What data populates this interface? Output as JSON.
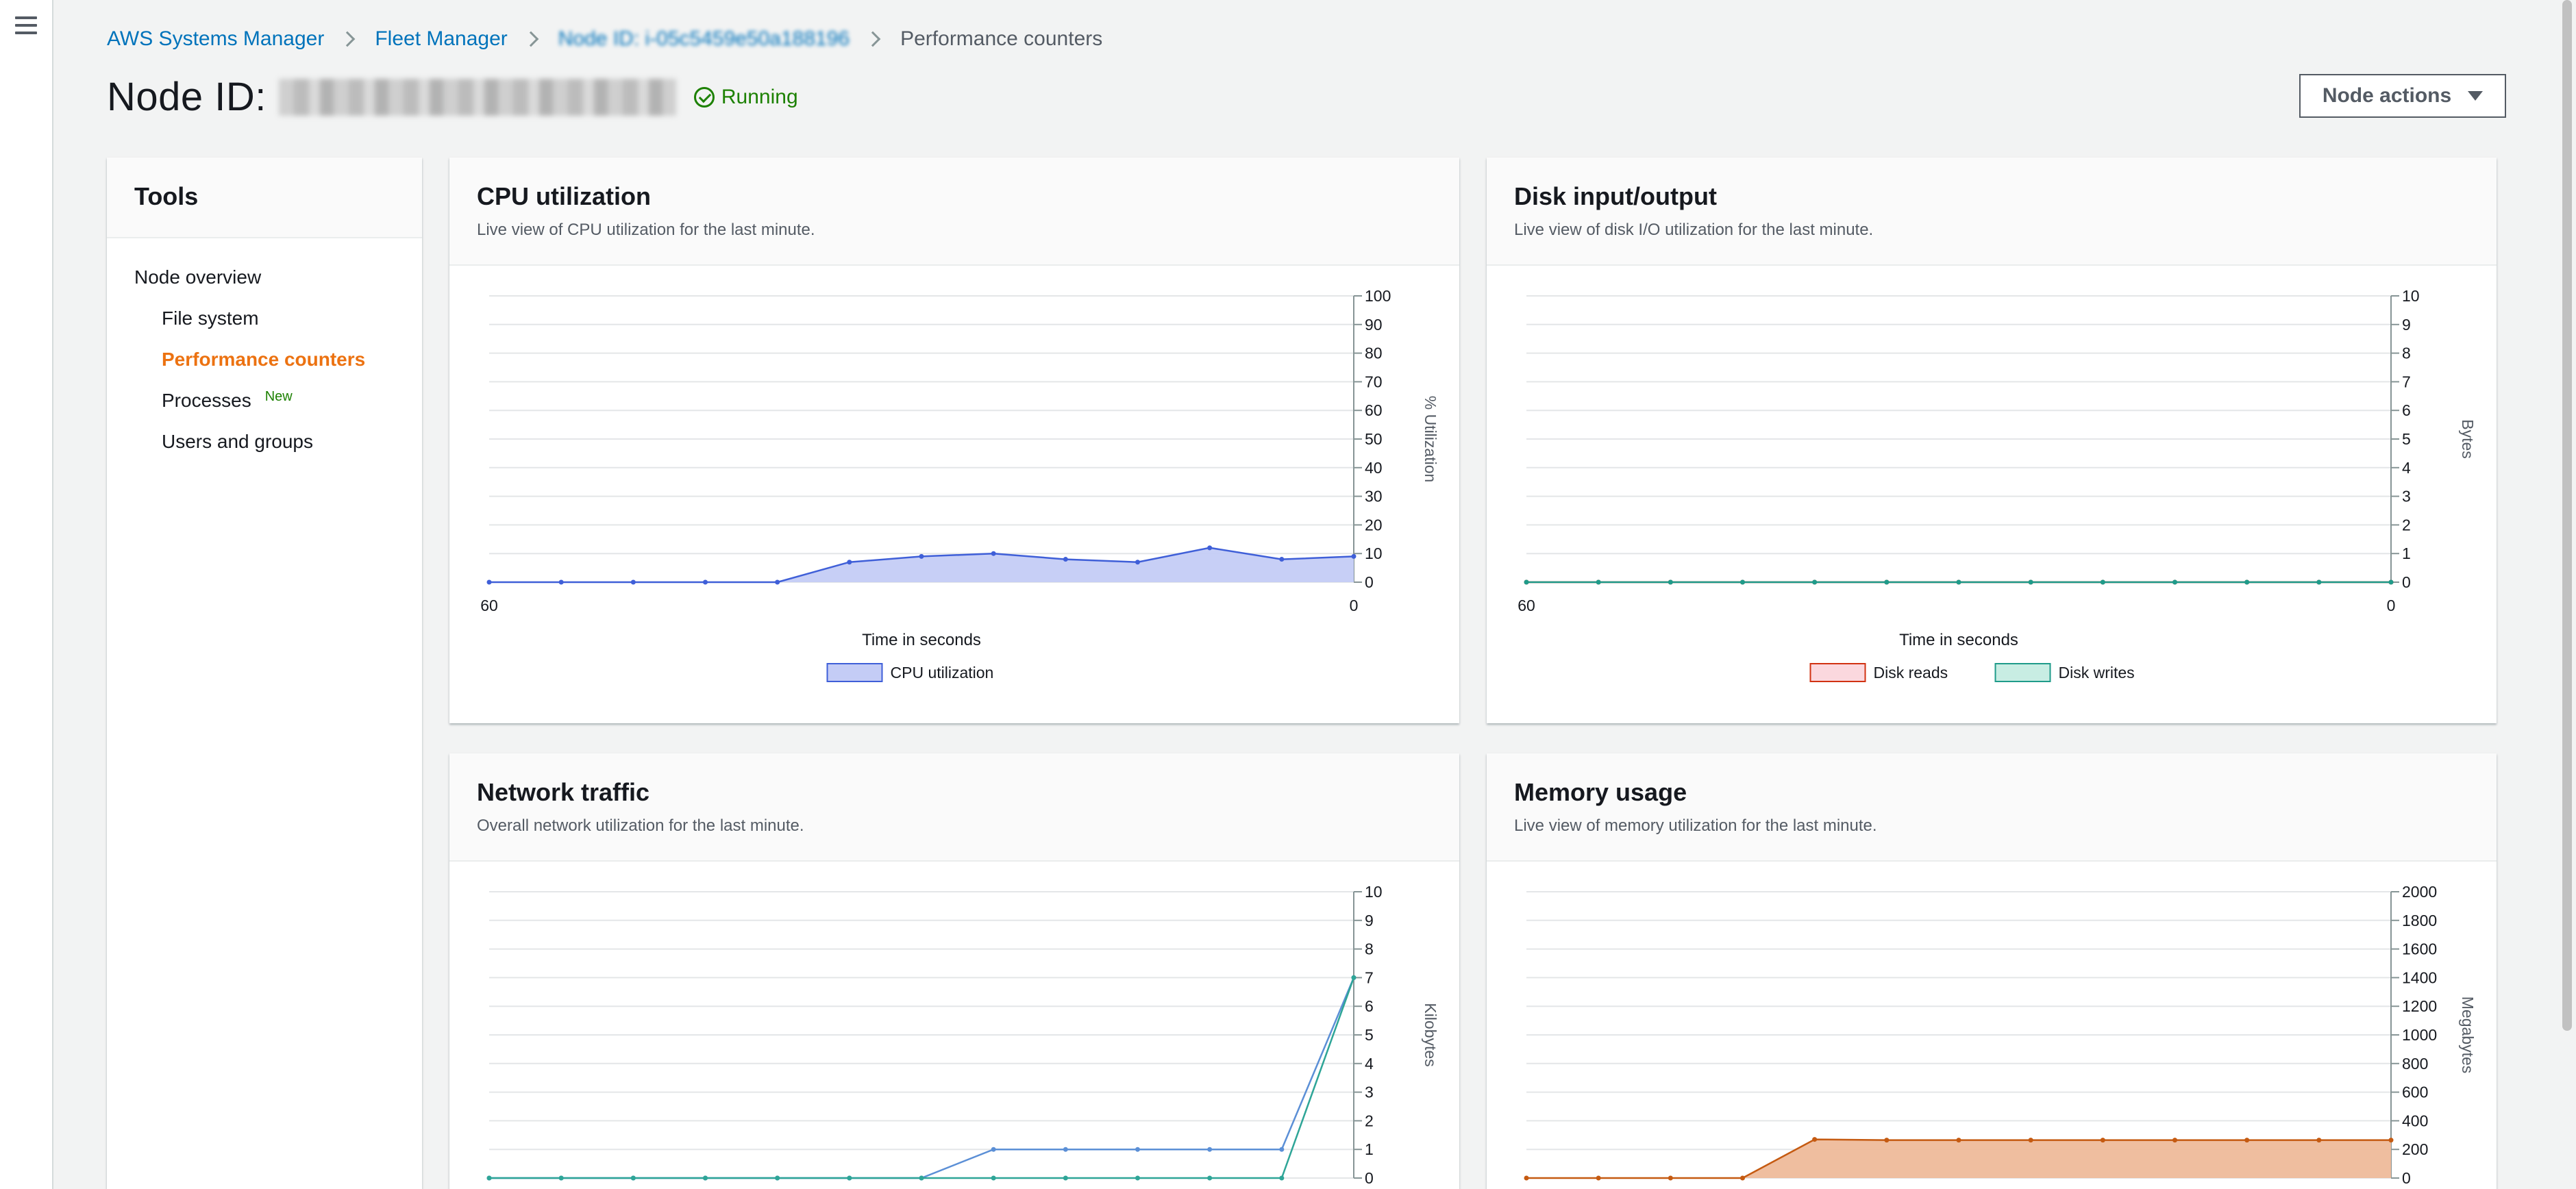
{
  "breadcrumb": {
    "items": [
      "AWS Systems Manager",
      "Fleet Manager",
      "Node ID: i-05c5459e50a188196"
    ],
    "current": "Performance counters"
  },
  "header": {
    "title": "Node ID:",
    "status": "Running",
    "status_color": "#1d8102",
    "actions_label": "Node actions"
  },
  "tools": {
    "title": "Tools",
    "items": [
      {
        "label": "Node overview"
      },
      {
        "label": "File system"
      },
      {
        "label": "Performance counters"
      },
      {
        "label": "Processes",
        "badge": "New"
      },
      {
        "label": "Users and groups"
      }
    ],
    "active_color": "#ec7211"
  },
  "panels": {
    "cpu": {
      "title": "CPU utilization",
      "subtitle": "Live view of CPU utilization for the last minute."
    },
    "disk": {
      "title": "Disk input/output",
      "subtitle": "Live view of disk I/O utilization for the last minute."
    },
    "network": {
      "title": "Network traffic",
      "subtitle": "Overall network utilization for the last minute."
    },
    "memory": {
      "title": "Memory usage",
      "subtitle": "Live view of memory utilization for the last minute."
    }
  },
  "chart_data": [
    {
      "id": "cpu",
      "type": "area",
      "xlabel": "Time in seconds",
      "ylabel": "% Utilization",
      "xlim": [
        60,
        0
      ],
      "x_ticks": [
        "60",
        "0"
      ],
      "ylim": [
        0,
        100
      ],
      "y_ticks": [
        "100",
        "90",
        "80",
        "70",
        "60",
        "50",
        "40",
        "30",
        "20",
        "10",
        "0"
      ],
      "x": [
        60,
        55,
        50,
        45,
        40,
        35,
        30,
        25,
        20,
        15,
        10,
        5,
        0
      ],
      "series": [
        {
          "name": "CPU utilization",
          "values": [
            0,
            0,
            0,
            0,
            0,
            7,
            9,
            10,
            8,
            7,
            12,
            8,
            9
          ],
          "color": "#3f5fd8",
          "fill": "#c4ccf6"
        }
      ],
      "legend": "bottom"
    },
    {
      "id": "disk",
      "type": "line",
      "xlabel": "Time in seconds",
      "ylabel": "Bytes",
      "xlim": [
        60,
        0
      ],
      "x_ticks": [
        "60",
        "0"
      ],
      "ylim": [
        0,
        10
      ],
      "y_ticks": [
        "10",
        "9",
        "8",
        "7",
        "6",
        "5",
        "4",
        "3",
        "2",
        "1",
        "0"
      ],
      "x": [
        60,
        55,
        50,
        45,
        40,
        35,
        30,
        25,
        20,
        15,
        10,
        5,
        0
      ],
      "series": [
        {
          "name": "Disk reads",
          "values": [
            0,
            0,
            0,
            0,
            0,
            0,
            0,
            0,
            0,
            0,
            0,
            0,
            0
          ],
          "color": "#d13212",
          "fill": "#fbd8de"
        },
        {
          "name": "Disk writes",
          "values": [
            0,
            0,
            0,
            0,
            0,
            0,
            0,
            0,
            0,
            0,
            0,
            0,
            0
          ],
          "color": "#1f9b8a",
          "fill": "#c8ede3"
        }
      ],
      "legend": "bottom"
    },
    {
      "id": "network",
      "type": "line",
      "ylabel": "Kilobytes",
      "xlim": [
        60,
        0
      ],
      "ylim": [
        0,
        10
      ],
      "y_ticks": [
        "10",
        "9",
        "8",
        "7",
        "6",
        "5",
        "4",
        "3",
        "2",
        "1",
        "0"
      ],
      "x": [
        60,
        55,
        50,
        45,
        40,
        35,
        30,
        25,
        20,
        15,
        10,
        5,
        0
      ],
      "series": [
        {
          "values": [
            0,
            0,
            0,
            0,
            0,
            0,
            0,
            1,
            1,
            1,
            1,
            1,
            7
          ],
          "color": "#5b8fd6"
        },
        {
          "values": [
            0,
            0,
            0,
            0,
            0,
            0,
            0,
            0,
            0,
            0,
            0,
            0,
            7
          ],
          "color": "#2ea597"
        }
      ]
    },
    {
      "id": "memory",
      "type": "area",
      "ylabel": "Megabytes",
      "xlim": [
        60,
        0
      ],
      "ylim": [
        0,
        2000
      ],
      "y_ticks": [
        "2000",
        "1800",
        "1600",
        "1400",
        "1200",
        "1000",
        "800",
        "600",
        "400",
        "200",
        "0"
      ],
      "x": [
        60,
        55,
        50,
        45,
        40,
        35,
        30,
        25,
        20,
        15,
        10,
        5,
        0
      ],
      "series": [
        {
          "values": [
            0,
            0,
            0,
            0,
            270,
            265,
            265,
            265,
            265,
            265,
            265,
            265,
            265
          ],
          "color": "#c55a11",
          "fill": "#eebb9a"
        }
      ]
    }
  ]
}
